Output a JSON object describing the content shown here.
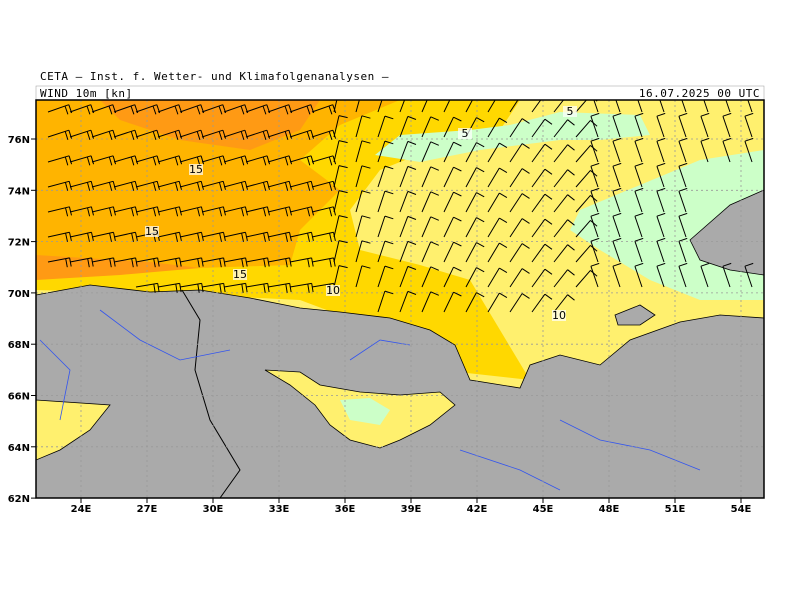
{
  "header": {
    "source": "CETA – Inst. f. Wetter- und Klimafolgenanalysen –",
    "field": "WIND 10m [kn]",
    "date": "16.07.2025 00 UTC"
  },
  "axes": {
    "lon_ticks": [
      "24E",
      "27E",
      "30E",
      "33E",
      "36E",
      "39E",
      "42E",
      "45E",
      "48E",
      "51E",
      "54E"
    ],
    "lat_ticks": [
      "76N",
      "74N",
      "72N",
      "70N",
      "68N",
      "66N",
      "64N",
      "62N"
    ]
  },
  "contour_labels": [
    "5",
    "5",
    "15",
    "15",
    "15",
    "10",
    "10"
  ]
}
